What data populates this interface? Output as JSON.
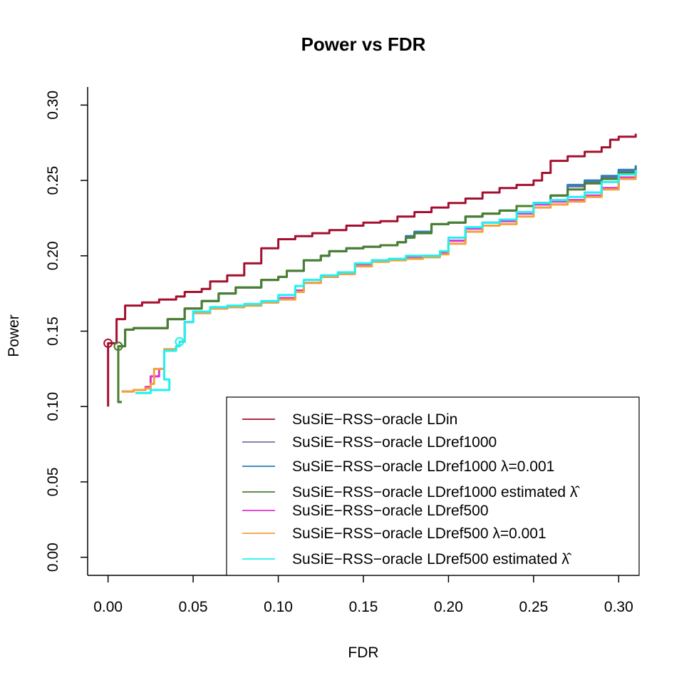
{
  "chart_data": {
    "type": "line",
    "title": "Power vs FDR",
    "xlabel": "FDR",
    "ylabel": "Power",
    "xlim": [
      -0.012,
      0.312
    ],
    "ylim": [
      -0.012,
      0.312
    ],
    "xticks": [
      0.0,
      0.05,
      0.1,
      0.15,
      0.2,
      0.25,
      0.3
    ],
    "xtick_labels": [
      "0.00",
      "0.05",
      "0.10",
      "0.15",
      "0.20",
      "0.25",
      "0.30"
    ],
    "yticks": [
      0.0,
      0.05,
      0.1,
      0.15,
      0.2,
      0.25,
      0.3
    ],
    "ytick_labels": [
      "0.00",
      "0.05",
      "0.10",
      "0.15",
      "0.20",
      "0.25",
      "0.30"
    ],
    "grid": false,
    "legend_position": "bottom-right",
    "series": [
      {
        "name": "SuSiE−RSS−oracle LDin",
        "color": "#a50f2e",
        "marker": [
          0.0,
          0.142
        ],
        "points": [
          [
            0.0,
            0.1
          ],
          [
            0.0,
            0.142
          ],
          [
            0.005,
            0.142
          ],
          [
            0.005,
            0.158
          ],
          [
            0.01,
            0.167
          ],
          [
            0.02,
            0.169
          ],
          [
            0.03,
            0.171
          ],
          [
            0.04,
            0.173
          ],
          [
            0.045,
            0.176
          ],
          [
            0.055,
            0.178
          ],
          [
            0.06,
            0.183
          ],
          [
            0.07,
            0.187
          ],
          [
            0.08,
            0.195
          ],
          [
            0.09,
            0.205
          ],
          [
            0.1,
            0.211
          ],
          [
            0.11,
            0.213
          ],
          [
            0.12,
            0.215
          ],
          [
            0.13,
            0.217
          ],
          [
            0.14,
            0.22
          ],
          [
            0.15,
            0.222
          ],
          [
            0.16,
            0.223
          ],
          [
            0.17,
            0.226
          ],
          [
            0.18,
            0.229
          ],
          [
            0.19,
            0.232
          ],
          [
            0.2,
            0.235
          ],
          [
            0.21,
            0.238
          ],
          [
            0.22,
            0.242
          ],
          [
            0.23,
            0.245
          ],
          [
            0.24,
            0.247
          ],
          [
            0.25,
            0.25
          ],
          [
            0.255,
            0.255
          ],
          [
            0.26,
            0.263
          ],
          [
            0.27,
            0.266
          ],
          [
            0.28,
            0.269
          ],
          [
            0.29,
            0.272
          ],
          [
            0.295,
            0.277
          ],
          [
            0.3,
            0.279
          ],
          [
            0.31,
            0.281
          ]
        ]
      },
      {
        "name": "SuSiE−RSS−oracle LDref1000",
        "color": "#7a6fa8",
        "marker": [
          0.006,
          0.14
        ],
        "points": [
          [
            0.008,
            0.103
          ],
          [
            0.006,
            0.14
          ],
          [
            0.01,
            0.151
          ],
          [
            0.015,
            0.152
          ],
          [
            0.025,
            0.152
          ],
          [
            0.03,
            0.152
          ],
          [
            0.035,
            0.158
          ],
          [
            0.045,
            0.165
          ],
          [
            0.055,
            0.17
          ],
          [
            0.065,
            0.175
          ],
          [
            0.075,
            0.179
          ],
          [
            0.09,
            0.184
          ],
          [
            0.1,
            0.186
          ],
          [
            0.105,
            0.19
          ],
          [
            0.115,
            0.197
          ],
          [
            0.125,
            0.2
          ],
          [
            0.13,
            0.203
          ],
          [
            0.14,
            0.205
          ],
          [
            0.15,
            0.206
          ],
          [
            0.16,
            0.207
          ],
          [
            0.17,
            0.209
          ],
          [
            0.175,
            0.213
          ],
          [
            0.18,
            0.216
          ],
          [
            0.19,
            0.221
          ],
          [
            0.2,
            0.222
          ],
          [
            0.21,
            0.226
          ],
          [
            0.22,
            0.228
          ],
          [
            0.23,
            0.23
          ],
          [
            0.24,
            0.233
          ],
          [
            0.25,
            0.235
          ],
          [
            0.26,
            0.24
          ],
          [
            0.27,
            0.246
          ],
          [
            0.28,
            0.249
          ],
          [
            0.29,
            0.252
          ],
          [
            0.3,
            0.256
          ],
          [
            0.31,
            0.259
          ]
        ]
      },
      {
        "name": "SuSiE−RSS−oracle LDref1000 λ=0.001",
        "color": "#2c7fb8",
        "marker": null,
        "points": [
          [
            0.008,
            0.103
          ],
          [
            0.006,
            0.14
          ],
          [
            0.01,
            0.151
          ],
          [
            0.015,
            0.152
          ],
          [
            0.025,
            0.152
          ],
          [
            0.03,
            0.152
          ],
          [
            0.035,
            0.158
          ],
          [
            0.045,
            0.165
          ],
          [
            0.055,
            0.17
          ],
          [
            0.065,
            0.175
          ],
          [
            0.075,
            0.179
          ],
          [
            0.09,
            0.184
          ],
          [
            0.1,
            0.186
          ],
          [
            0.105,
            0.19
          ],
          [
            0.115,
            0.197
          ],
          [
            0.125,
            0.2
          ],
          [
            0.13,
            0.203
          ],
          [
            0.14,
            0.205
          ],
          [
            0.15,
            0.206
          ],
          [
            0.16,
            0.207
          ],
          [
            0.17,
            0.209
          ],
          [
            0.175,
            0.213
          ],
          [
            0.18,
            0.216
          ],
          [
            0.19,
            0.221
          ],
          [
            0.2,
            0.222
          ],
          [
            0.21,
            0.226
          ],
          [
            0.22,
            0.228
          ],
          [
            0.23,
            0.23
          ],
          [
            0.24,
            0.233
          ],
          [
            0.25,
            0.235
          ],
          [
            0.26,
            0.24
          ],
          [
            0.27,
            0.247
          ],
          [
            0.28,
            0.25
          ],
          [
            0.29,
            0.253
          ],
          [
            0.3,
            0.257
          ],
          [
            0.31,
            0.26
          ]
        ]
      },
      {
        "name": "SuSiE−RSS−oracle LDref1000 estimated λ̂",
        "color": "#4a7f2c",
        "marker": [
          0.006,
          0.14
        ],
        "points": [
          [
            0.008,
            0.103
          ],
          [
            0.006,
            0.14
          ],
          [
            0.01,
            0.151
          ],
          [
            0.015,
            0.152
          ],
          [
            0.025,
            0.152
          ],
          [
            0.03,
            0.152
          ],
          [
            0.035,
            0.158
          ],
          [
            0.045,
            0.165
          ],
          [
            0.055,
            0.17
          ],
          [
            0.065,
            0.175
          ],
          [
            0.075,
            0.179
          ],
          [
            0.09,
            0.184
          ],
          [
            0.1,
            0.186
          ],
          [
            0.105,
            0.19
          ],
          [
            0.115,
            0.197
          ],
          [
            0.125,
            0.2
          ],
          [
            0.13,
            0.203
          ],
          [
            0.14,
            0.205
          ],
          [
            0.15,
            0.206
          ],
          [
            0.16,
            0.207
          ],
          [
            0.17,
            0.209
          ],
          [
            0.175,
            0.212
          ],
          [
            0.18,
            0.215
          ],
          [
            0.19,
            0.221
          ],
          [
            0.2,
            0.222
          ],
          [
            0.21,
            0.226
          ],
          [
            0.22,
            0.228
          ],
          [
            0.23,
            0.23
          ],
          [
            0.24,
            0.233
          ],
          [
            0.25,
            0.235
          ],
          [
            0.26,
            0.24
          ],
          [
            0.27,
            0.244
          ],
          [
            0.28,
            0.248
          ],
          [
            0.29,
            0.251
          ],
          [
            0.3,
            0.255
          ],
          [
            0.31,
            0.258
          ]
        ]
      },
      {
        "name": "SuSiE−RSS−oracle LDref500",
        "color": "#e32fcf",
        "marker": null,
        "points": [
          [
            0.008,
            0.11
          ],
          [
            0.015,
            0.111
          ],
          [
            0.022,
            0.113
          ],
          [
            0.025,
            0.12
          ],
          [
            0.03,
            0.125
          ],
          [
            0.033,
            0.138
          ],
          [
            0.04,
            0.14
          ],
          [
            0.042,
            0.143
          ],
          [
            0.045,
            0.156
          ],
          [
            0.05,
            0.162
          ],
          [
            0.06,
            0.165
          ],
          [
            0.07,
            0.166
          ],
          [
            0.08,
            0.167
          ],
          [
            0.09,
            0.169
          ],
          [
            0.1,
            0.172
          ],
          [
            0.11,
            0.177
          ],
          [
            0.115,
            0.182
          ],
          [
            0.125,
            0.186
          ],
          [
            0.135,
            0.188
          ],
          [
            0.145,
            0.194
          ],
          [
            0.155,
            0.197
          ],
          [
            0.165,
            0.198
          ],
          [
            0.175,
            0.199
          ],
          [
            0.185,
            0.2
          ],
          [
            0.195,
            0.202
          ],
          [
            0.2,
            0.21
          ],
          [
            0.21,
            0.218
          ],
          [
            0.22,
            0.222
          ],
          [
            0.23,
            0.223
          ],
          [
            0.24,
            0.228
          ],
          [
            0.25,
            0.234
          ],
          [
            0.26,
            0.236
          ],
          [
            0.27,
            0.237
          ],
          [
            0.28,
            0.24
          ],
          [
            0.29,
            0.245
          ],
          [
            0.3,
            0.252
          ],
          [
            0.31,
            0.255
          ]
        ]
      },
      {
        "name": "SuSiE−RSS−oracle LDref500 λ=0.001",
        "color": "#f0a23a",
        "marker": [
          0.042,
          0.143
        ],
        "points": [
          [
            0.008,
            0.11
          ],
          [
            0.015,
            0.111
          ],
          [
            0.022,
            0.112
          ],
          [
            0.025,
            0.115
          ],
          [
            0.027,
            0.125
          ],
          [
            0.033,
            0.138
          ],
          [
            0.04,
            0.14
          ],
          [
            0.042,
            0.143
          ],
          [
            0.045,
            0.156
          ],
          [
            0.05,
            0.162
          ],
          [
            0.06,
            0.165
          ],
          [
            0.07,
            0.166
          ],
          [
            0.08,
            0.167
          ],
          [
            0.09,
            0.169
          ],
          [
            0.1,
            0.171
          ],
          [
            0.11,
            0.176
          ],
          [
            0.115,
            0.182
          ],
          [
            0.125,
            0.186
          ],
          [
            0.135,
            0.188
          ],
          [
            0.145,
            0.193
          ],
          [
            0.155,
            0.196
          ],
          [
            0.165,
            0.197
          ],
          [
            0.175,
            0.198
          ],
          [
            0.185,
            0.199
          ],
          [
            0.195,
            0.201
          ],
          [
            0.2,
            0.208
          ],
          [
            0.21,
            0.216
          ],
          [
            0.22,
            0.22
          ],
          [
            0.23,
            0.221
          ],
          [
            0.24,
            0.226
          ],
          [
            0.25,
            0.232
          ],
          [
            0.26,
            0.234
          ],
          [
            0.27,
            0.236
          ],
          [
            0.28,
            0.239
          ],
          [
            0.29,
            0.244
          ],
          [
            0.3,
            0.251
          ],
          [
            0.31,
            0.254
          ]
        ]
      },
      {
        "name": "SuSiE−RSS−oracle LDref500 estimated λ̂",
        "color": "#1ef2f2",
        "marker": [
          0.042,
          0.143
        ],
        "points": [
          [
            0.016,
            0.109
          ],
          [
            0.025,
            0.111
          ],
          [
            0.036,
            0.118
          ],
          [
            0.033,
            0.137
          ],
          [
            0.04,
            0.14
          ],
          [
            0.042,
            0.143
          ],
          [
            0.045,
            0.156
          ],
          [
            0.05,
            0.163
          ],
          [
            0.06,
            0.166
          ],
          [
            0.07,
            0.167
          ],
          [
            0.08,
            0.168
          ],
          [
            0.09,
            0.17
          ],
          [
            0.1,
            0.174
          ],
          [
            0.11,
            0.18
          ],
          [
            0.115,
            0.184
          ],
          [
            0.125,
            0.187
          ],
          [
            0.135,
            0.189
          ],
          [
            0.145,
            0.195
          ],
          [
            0.155,
            0.197
          ],
          [
            0.165,
            0.198
          ],
          [
            0.175,
            0.2
          ],
          [
            0.185,
            0.2
          ],
          [
            0.195,
            0.203
          ],
          [
            0.2,
            0.212
          ],
          [
            0.21,
            0.219
          ],
          [
            0.22,
            0.222
          ],
          [
            0.23,
            0.224
          ],
          [
            0.24,
            0.229
          ],
          [
            0.25,
            0.235
          ],
          [
            0.26,
            0.237
          ],
          [
            0.27,
            0.239
          ],
          [
            0.28,
            0.242
          ],
          [
            0.29,
            0.249
          ],
          [
            0.3,
            0.254
          ],
          [
            0.31,
            0.257
          ]
        ]
      }
    ]
  }
}
